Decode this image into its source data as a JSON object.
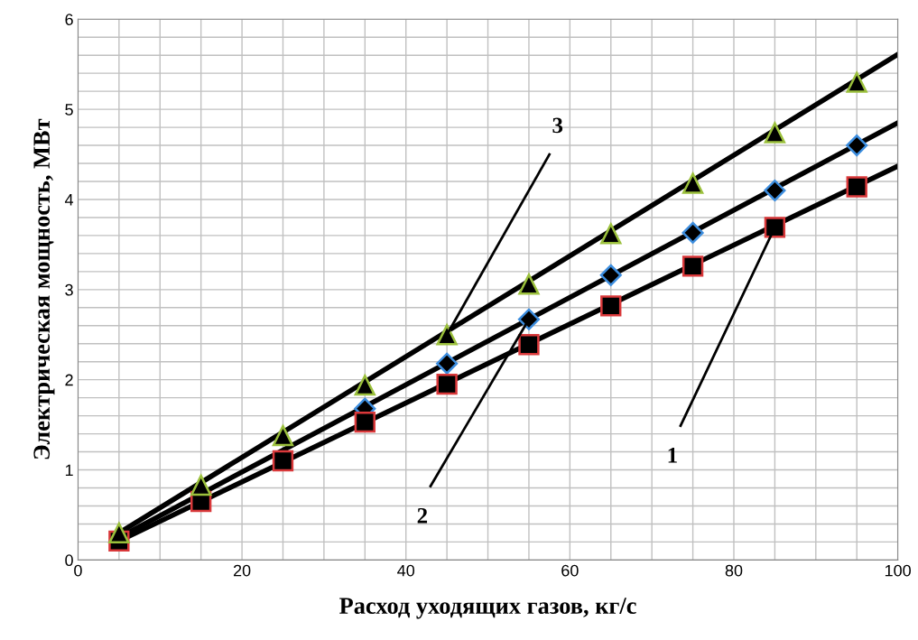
{
  "chart_data": {
    "type": "scatter",
    "xlabel": "Расход уходящих газов, кг/с",
    "ylabel": "Электрическая мощность, МВт",
    "xlim": [
      0,
      100
    ],
    "ylim": [
      0,
      6
    ],
    "xticks": [
      0,
      20,
      40,
      60,
      80,
      100
    ],
    "yticks": [
      0,
      1,
      2,
      3,
      4,
      5,
      6
    ],
    "grid": true,
    "legend": false,
    "series": [
      {
        "marker": "diamond",
        "color": "#3c8dde",
        "x": [
          35,
          45,
          55,
          65,
          75,
          85,
          95
        ],
        "values": [
          1.68,
          2.18,
          2.67,
          3.16,
          3.63,
          4.1,
          4.6
        ]
      },
      {
        "marker": "square",
        "color": "#d9383a",
        "x": [
          5,
          15,
          25,
          35,
          45,
          55,
          65,
          75,
          85,
          95
        ],
        "values": [
          0.21,
          0.65,
          1.1,
          1.53,
          1.95,
          2.39,
          2.82,
          3.26,
          3.69,
          4.14
        ]
      },
      {
        "marker": "triangle",
        "color": "#9bc03c",
        "x": [
          5,
          15,
          25,
          35,
          45,
          55,
          65,
          75,
          85,
          95
        ],
        "values": [
          0.3,
          0.83,
          1.38,
          1.94,
          2.5,
          3.06,
          3.62,
          4.18,
          4.74,
          5.3
        ]
      },
      {
        "type": "line",
        "color": "#000000",
        "x": [
          5,
          100
        ],
        "values": [
          0.21,
          4.37
        ]
      },
      {
        "type": "line",
        "color": "#000000",
        "x": [
          5,
          100
        ],
        "values": [
          0.25,
          4.85
        ]
      },
      {
        "type": "line",
        "color": "#000000",
        "x": [
          5,
          100
        ],
        "values": [
          0.3,
          5.61
        ]
      }
    ],
    "annotations": [
      {
        "text": "1",
        "x": 85,
        "y": 3.69
      },
      {
        "text": "2",
        "x": 55,
        "y": 2.67
      },
      {
        "text": "3",
        "x": 45,
        "y": 2.5
      }
    ]
  }
}
